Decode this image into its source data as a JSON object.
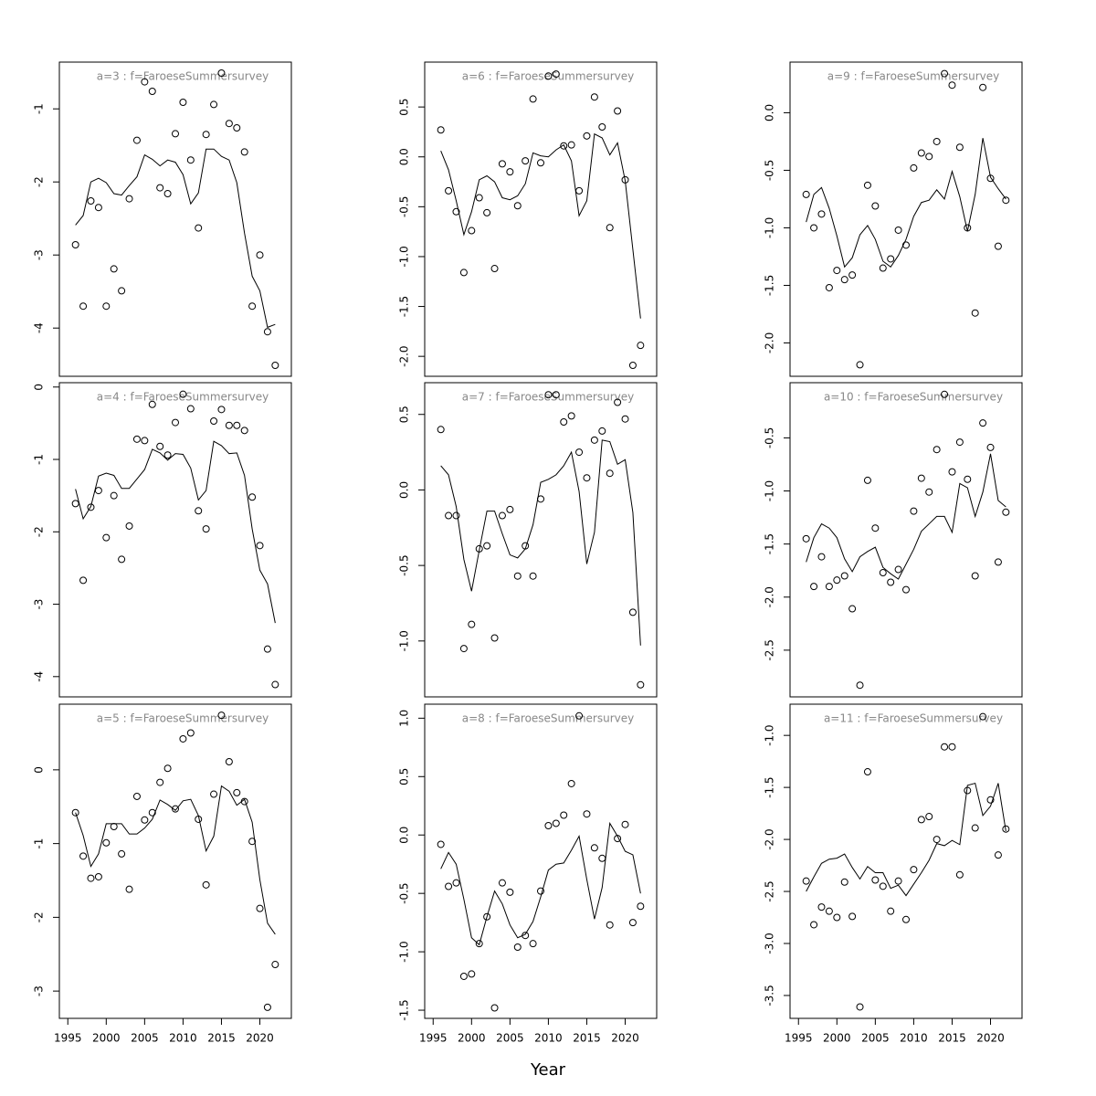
{
  "xlabel": "Year",
  "chart_data": [
    {
      "type": "line",
      "title": "a=3  :  f=FaroeseSummersurvey",
      "color": "#000000",
      "x": [
        1996,
        1997,
        1998,
        1999,
        2000,
        2001,
        2002,
        2003,
        2004,
        2005,
        2006,
        2007,
        2008,
        2009,
        2010,
        2011,
        2012,
        2013,
        2014,
        2015,
        2016,
        2017,
        2018,
        2019,
        2020,
        2021,
        2022
      ],
      "series": [
        {
          "style": "points",
          "values": [
            -2.86,
            -3.7,
            -2.26,
            -2.35,
            -3.7,
            -3.19,
            -3.49,
            -2.23,
            -1.43,
            -0.63,
            -0.76,
            -2.08,
            -2.16,
            -1.34,
            -0.91,
            -1.7,
            -2.63,
            -1.35,
            -0.94,
            -0.51,
            -1.2,
            -1.26,
            -1.59,
            -3.7,
            -3.0,
            -4.05,
            -4.51
          ]
        },
        {
          "style": "line",
          "values": [
            -2.59,
            -2.46,
            -2.0,
            -1.95,
            -2.01,
            -2.16,
            -2.18,
            -2.05,
            -1.93,
            -1.63,
            -1.69,
            -1.78,
            -1.7,
            -1.73,
            -1.9,
            -2.3,
            -2.15,
            -1.55,
            -1.55,
            -1.65,
            -1.7,
            -2.01,
            -2.7,
            -3.29,
            -3.49,
            -3.99,
            -3.95
          ]
        }
      ],
      "xlim": [
        1993.9,
        2024.1
      ],
      "ylim": [
        -4.66,
        -0.36
      ],
      "yticks": [
        -4,
        -3,
        -2,
        -1
      ]
    },
    {
      "type": "line",
      "title": "a=6  :  f=FaroeseSummersurvey",
      "color": "#000000",
      "x": [
        1996,
        1997,
        1998,
        1999,
        2000,
        2001,
        2002,
        2003,
        2004,
        2005,
        2006,
        2007,
        2008,
        2009,
        2010,
        2011,
        2012,
        2013,
        2014,
        2015,
        2016,
        2017,
        2018,
        2019,
        2020,
        2021,
        2022
      ],
      "series": [
        {
          "style": "points",
          "values": [
            0.27,
            -0.34,
            -0.55,
            -1.16,
            -0.74,
            -0.41,
            -0.56,
            -1.12,
            -0.07,
            -0.15,
            -0.49,
            -0.04,
            0.58,
            -0.06,
            0.81,
            0.83,
            0.11,
            0.12,
            -0.34,
            0.21,
            0.6,
            0.3,
            -0.71,
            0.46,
            -0.23,
            -2.09,
            -1.89
          ]
        },
        {
          "style": "line",
          "values": [
            0.06,
            -0.13,
            -0.44,
            -0.78,
            -0.55,
            -0.23,
            -0.19,
            -0.25,
            -0.41,
            -0.43,
            -0.39,
            -0.27,
            0.04,
            0.01,
            0.0,
            0.07,
            0.12,
            -0.04,
            -0.59,
            -0.44,
            0.23,
            0.19,
            0.02,
            0.14,
            -0.24,
            -0.93,
            -1.62
          ]
        }
      ],
      "xlim": [
        1993.9,
        2024.1
      ],
      "ylim": [
        -2.2,
        0.95
      ],
      "yticks": [
        {
          "value": -2,
          "label": "-2.0"
        },
        -1.5,
        {
          "value": -1,
          "label": "-1.0"
        },
        -0.5,
        {
          "value": 0,
          "label": "0.0"
        },
        0.5
      ]
    },
    {
      "type": "line",
      "title": "a=9  :  f=FaroeseSummersurvey",
      "color": "#000000",
      "x": [
        1996,
        1997,
        1998,
        1999,
        2000,
        2001,
        2002,
        2003,
        2004,
        2005,
        2006,
        2007,
        2008,
        2009,
        2010,
        2011,
        2012,
        2013,
        2014,
        2015,
        2016,
        2017,
        2018,
        2019,
        2020,
        2021,
        2022
      ],
      "series": [
        {
          "style": "points",
          "values": [
            -0.71,
            -1.0,
            -0.88,
            -1.52,
            -1.37,
            -1.45,
            -1.41,
            -2.19,
            -0.63,
            -0.81,
            -1.35,
            -1.27,
            -1.02,
            -1.15,
            -0.48,
            -0.35,
            -0.38,
            -0.25,
            0.34,
            0.24,
            -0.3,
            -1.0,
            -1.74,
            0.22,
            -0.57,
            -1.16,
            -0.76
          ]
        },
        {
          "style": "line",
          "values": [
            -0.95,
            -0.71,
            -0.65,
            -0.83,
            -1.07,
            -1.34,
            -1.26,
            -1.06,
            -0.98,
            -1.1,
            -1.29,
            -1.34,
            -1.24,
            -1.1,
            -0.9,
            -0.78,
            -0.76,
            -0.67,
            -0.75,
            -0.51,
            -0.73,
            -1.03,
            -0.71,
            -0.22,
            -0.56,
            -0.66,
            -0.75
          ]
        }
      ],
      "xlim": [
        1993.9,
        2024.1
      ],
      "ylim": [
        -2.29,
        0.44
      ],
      "yticks": [
        {
          "value": -2,
          "label": "-2.0"
        },
        -1.5,
        {
          "value": -1,
          "label": "-1.0"
        },
        -0.5,
        {
          "value": 0,
          "label": "0.0"
        }
      ]
    },
    {
      "type": "line",
      "title": "a=4  :  f=FaroeseSummersurvey",
      "color": "#000000",
      "x": [
        1996,
        1997,
        1998,
        1999,
        2000,
        2001,
        2002,
        2003,
        2004,
        2005,
        2006,
        2007,
        2008,
        2009,
        2010,
        2011,
        2012,
        2013,
        2014,
        2015,
        2016,
        2017,
        2018,
        2019,
        2020,
        2021,
        2022
      ],
      "series": [
        {
          "style": "points",
          "values": [
            -1.61,
            -2.67,
            -1.66,
            -1.43,
            -2.08,
            -1.5,
            -2.38,
            -1.92,
            -0.72,
            -0.74,
            -0.24,
            -0.82,
            -0.94,
            -0.49,
            -0.1,
            -0.3,
            -1.71,
            -1.96,
            -0.47,
            -0.31,
            -0.53,
            -0.53,
            -0.6,
            -1.52,
            -2.19,
            -3.62,
            -4.11
          ]
        },
        {
          "style": "line",
          "values": [
            -1.41,
            -1.82,
            -1.65,
            -1.23,
            -1.19,
            -1.22,
            -1.4,
            -1.4,
            -1.27,
            -1.14,
            -0.86,
            -0.91,
            -1.01,
            -0.92,
            -0.93,
            -1.12,
            -1.56,
            -1.43,
            -0.75,
            -0.81,
            -0.92,
            -0.91,
            -1.22,
            -1.96,
            -2.53,
            -2.72,
            -3.26
          ]
        }
      ],
      "xlim": [
        1993.9,
        2024.1
      ],
      "ylim": [
        -4.28,
        0.06
      ],
      "yticks": [
        -4,
        -3,
        -2,
        -1,
        0
      ]
    },
    {
      "type": "line",
      "title": "a=7  :  f=FaroeseSummersurvey",
      "color": "#000000",
      "x": [
        1996,
        1997,
        1998,
        1999,
        2000,
        2001,
        2002,
        2003,
        2004,
        2005,
        2006,
        2007,
        2008,
        2009,
        2010,
        2011,
        2012,
        2013,
        2014,
        2015,
        2016,
        2017,
        2018,
        2019,
        2020,
        2021,
        2022
      ],
      "series": [
        {
          "style": "points",
          "values": [
            0.4,
            -0.17,
            -0.17,
            -1.05,
            -0.89,
            -0.39,
            -0.37,
            -0.98,
            -0.17,
            -0.13,
            -0.57,
            -0.37,
            -0.57,
            -0.06,
            0.63,
            0.63,
            0.45,
            0.49,
            0.25,
            0.08,
            0.33,
            0.39,
            0.11,
            0.58,
            0.47,
            -0.81,
            -1.29
          ]
        },
        {
          "style": "line",
          "values": [
            0.16,
            0.1,
            -0.11,
            -0.46,
            -0.67,
            -0.4,
            -0.14,
            -0.14,
            -0.29,
            -0.43,
            -0.45,
            -0.39,
            -0.23,
            0.05,
            0.07,
            0.1,
            0.16,
            0.25,
            -0.01,
            -0.49,
            -0.28,
            0.33,
            0.32,
            0.17,
            0.2,
            -0.15,
            -1.03
          ]
        }
      ],
      "xlim": [
        1993.9,
        2024.1
      ],
      "ylim": [
        -1.37,
        0.71
      ],
      "yticks": [
        {
          "value": -1,
          "label": "-1.0"
        },
        -0.5,
        {
          "value": 0,
          "label": "0.0"
        },
        0.5
      ]
    },
    {
      "type": "line",
      "title": "a=10  :  f=FaroeseSummersurvey",
      "color": "#000000",
      "x": [
        1996,
        1997,
        1998,
        1999,
        2000,
        2001,
        2002,
        2003,
        2004,
        2005,
        2006,
        2007,
        2008,
        2009,
        2010,
        2011,
        2012,
        2013,
        2014,
        2015,
        2016,
        2017,
        2018,
        2019,
        2020,
        2021,
        2022
      ],
      "series": [
        {
          "style": "points",
          "values": [
            -1.45,
            -1.9,
            -1.62,
            -1.9,
            -1.84,
            -1.8,
            -2.11,
            -2.83,
            -0.9,
            -1.35,
            -1.77,
            -1.86,
            -1.74,
            -1.93,
            -1.19,
            -0.88,
            -1.01,
            -0.61,
            -0.09,
            -0.82,
            -0.54,
            -0.89,
            -1.8,
            -0.36,
            -0.59,
            -1.67,
            -1.2
          ]
        },
        {
          "style": "line",
          "values": [
            -1.67,
            -1.44,
            -1.31,
            -1.35,
            -1.44,
            -1.64,
            -1.76,
            -1.62,
            -1.57,
            -1.53,
            -1.72,
            -1.78,
            -1.83,
            -1.69,
            -1.55,
            -1.38,
            -1.31,
            -1.24,
            -1.24,
            -1.39,
            -0.93,
            -0.97,
            -1.24,
            -1.01,
            -0.65,
            -1.09,
            -1.15
          ]
        }
      ],
      "xlim": [
        1993.9,
        2024.1
      ],
      "ylim": [
        -2.94,
        0.02
      ],
      "yticks": [
        -2.5,
        {
          "value": -2,
          "label": "-2.0"
        },
        -1.5,
        {
          "value": -1,
          "label": "-1.0"
        },
        -0.5
      ]
    },
    {
      "type": "line",
      "title": "a=5  :  f=FaroeseSummersurvey",
      "color": "#000000",
      "x": [
        1996,
        1997,
        1998,
        1999,
        2000,
        2001,
        2002,
        2003,
        2004,
        2005,
        2006,
        2007,
        2008,
        2009,
        2010,
        2011,
        2012,
        2013,
        2014,
        2015,
        2016,
        2017,
        2018,
        2019,
        2020,
        2021,
        2022
      ],
      "series": [
        {
          "style": "points",
          "values": [
            -0.58,
            -1.17,
            -1.47,
            -1.45,
            -0.99,
            -0.77,
            -1.14,
            -1.62,
            -0.36,
            -0.68,
            -0.58,
            -0.17,
            0.02,
            -0.53,
            0.42,
            0.5,
            -0.67,
            -1.56,
            -0.33,
            0.74,
            0.11,
            -0.31,
            -0.43,
            -0.97,
            -1.88,
            -3.22,
            -2.64
          ]
        },
        {
          "style": "line",
          "values": [
            -0.58,
            -0.89,
            -1.31,
            -1.14,
            -0.73,
            -0.73,
            -0.73,
            -0.87,
            -0.87,
            -0.79,
            -0.67,
            -0.41,
            -0.47,
            -0.55,
            -0.42,
            -0.4,
            -0.62,
            -1.1,
            -0.9,
            -0.22,
            -0.29,
            -0.48,
            -0.4,
            -0.71,
            -1.49,
            -2.08,
            -2.23
          ]
        }
      ],
      "xlim": [
        1993.9,
        2024.1
      ],
      "ylim": [
        -3.37,
        0.89
      ],
      "yticks": [
        -3,
        -2,
        -1,
        0
      ],
      "xticks": [
        1995,
        2000,
        2005,
        2010,
        2015,
        2020
      ]
    },
    {
      "type": "line",
      "title": "a=8  :  f=FaroeseSummersurvey",
      "color": "#000000",
      "x": [
        1996,
        1997,
        1998,
        1999,
        2000,
        2001,
        2002,
        2003,
        2004,
        2005,
        2006,
        2007,
        2008,
        2009,
        2010,
        2011,
        2012,
        2013,
        2014,
        2015,
        2016,
        2017,
        2018,
        2019,
        2020,
        2021,
        2022
      ],
      "series": [
        {
          "style": "points",
          "values": [
            -0.08,
            -0.44,
            -0.41,
            -1.21,
            -1.19,
            -0.93,
            -0.7,
            -1.48,
            -0.41,
            -0.49,
            -0.96,
            -0.86,
            -0.93,
            -0.48,
            0.08,
            0.1,
            0.17,
            0.44,
            1.02,
            0.18,
            -0.11,
            -0.2,
            -0.77,
            -0.03,
            0.09,
            -0.75,
            -0.61
          ]
        },
        {
          "style": "line",
          "values": [
            -0.29,
            -0.15,
            -0.25,
            -0.55,
            -0.88,
            -0.94,
            -0.7,
            -0.48,
            -0.59,
            -0.77,
            -0.88,
            -0.85,
            -0.74,
            -0.53,
            -0.3,
            -0.25,
            -0.24,
            -0.13,
            -0.01,
            -0.38,
            -0.72,
            -0.45,
            0.1,
            -0.01,
            -0.14,
            -0.17,
            -0.5
          ]
        }
      ],
      "xlim": [
        1993.9,
        2024.1
      ],
      "ylim": [
        -1.57,
        1.12
      ],
      "yticks": [
        -1.5,
        {
          "value": -1,
          "label": "-1.0"
        },
        -0.5,
        {
          "value": 0,
          "label": "0.0"
        },
        0.5,
        {
          "value": 1,
          "label": "1.0"
        }
      ],
      "xticks": [
        1995,
        2000,
        2005,
        2010,
        2015,
        2020
      ]
    },
    {
      "type": "line",
      "title": "a=11  :  f=FaroeseSummersurvey",
      "color": "#000000",
      "x": [
        1996,
        1997,
        1998,
        1999,
        2000,
        2001,
        2002,
        2003,
        2004,
        2005,
        2006,
        2007,
        2008,
        2009,
        2010,
        2011,
        2012,
        2013,
        2014,
        2015,
        2016,
        2017,
        2018,
        2019,
        2020,
        2021,
        2022
      ],
      "series": [
        {
          "style": "points",
          "values": [
            -2.4,
            -2.82,
            -2.65,
            -2.69,
            -2.75,
            -2.41,
            -2.74,
            -3.61,
            -1.35,
            -2.39,
            -2.45,
            -2.69,
            -2.4,
            -2.77,
            -2.29,
            -1.81,
            -1.78,
            -2.0,
            -1.11,
            -1.11,
            -2.34,
            -1.53,
            -1.89,
            -0.82,
            -1.62,
            -2.15,
            -1.9
          ]
        },
        {
          "style": "line",
          "values": [
            -2.5,
            -2.36,
            -2.23,
            -2.19,
            -2.18,
            -2.14,
            -2.27,
            -2.38,
            -2.26,
            -2.32,
            -2.32,
            -2.47,
            -2.44,
            -2.54,
            -2.43,
            -2.32,
            -2.2,
            -2.04,
            -2.06,
            -2.01,
            -2.05,
            -1.48,
            -1.46,
            -1.77,
            -1.68,
            -1.46,
            -1.92
          ]
        }
      ],
      "xlim": [
        1993.9,
        2024.1
      ],
      "ylim": [
        -3.72,
        -0.7
      ],
      "yticks": [
        -3.5,
        {
          "value": -3,
          "label": "-3.0"
        },
        -2.5,
        {
          "value": -2,
          "label": "-2.0"
        },
        -1.5,
        {
          "value": -1,
          "label": "-1.0"
        }
      ],
      "xticks": [
        1995,
        2000,
        2005,
        2010,
        2015,
        2020
      ]
    }
  ]
}
